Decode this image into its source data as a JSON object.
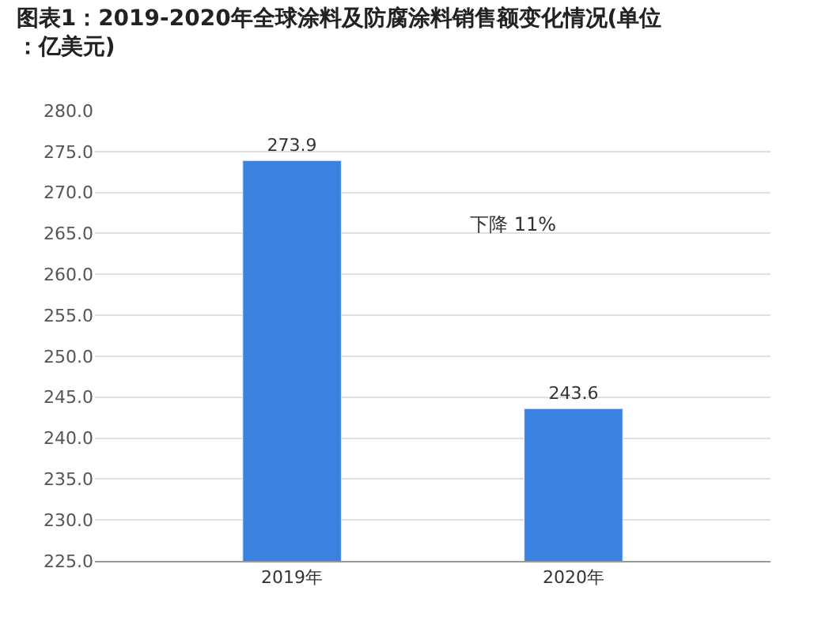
{
  "chart_data": {
    "type": "bar",
    "title": "图表1：2019-2020年全球涂料及防腐涂料销售额变化情况(单位：亿美元)",
    "categories": [
      "2019年",
      "2020年"
    ],
    "values": [
      273.9,
      243.6
    ],
    "color": "#3b82e0",
    "data_labels": true,
    "ylim": [
      225,
      280
    ],
    "yticks": [
      {
        "value": 225,
        "label": "225.0"
      },
      {
        "value": 230,
        "label": "230.0"
      },
      {
        "value": 235,
        "label": "235.0"
      },
      {
        "value": 240,
        "label": "240.0"
      },
      {
        "value": 245,
        "label": "245.0"
      },
      {
        "value": 250,
        "label": "250.0"
      },
      {
        "value": 255,
        "label": "255.0"
      },
      {
        "value": 260,
        "label": "260.0"
      },
      {
        "value": 265,
        "label": "265.0"
      },
      {
        "value": 270,
        "label": "270.0"
      },
      {
        "value": 275,
        "label": "275.0"
      },
      {
        "value": 280,
        "label": "280.0"
      }
    ],
    "grid": "y",
    "annotations": [
      "下降 11%"
    ]
  }
}
